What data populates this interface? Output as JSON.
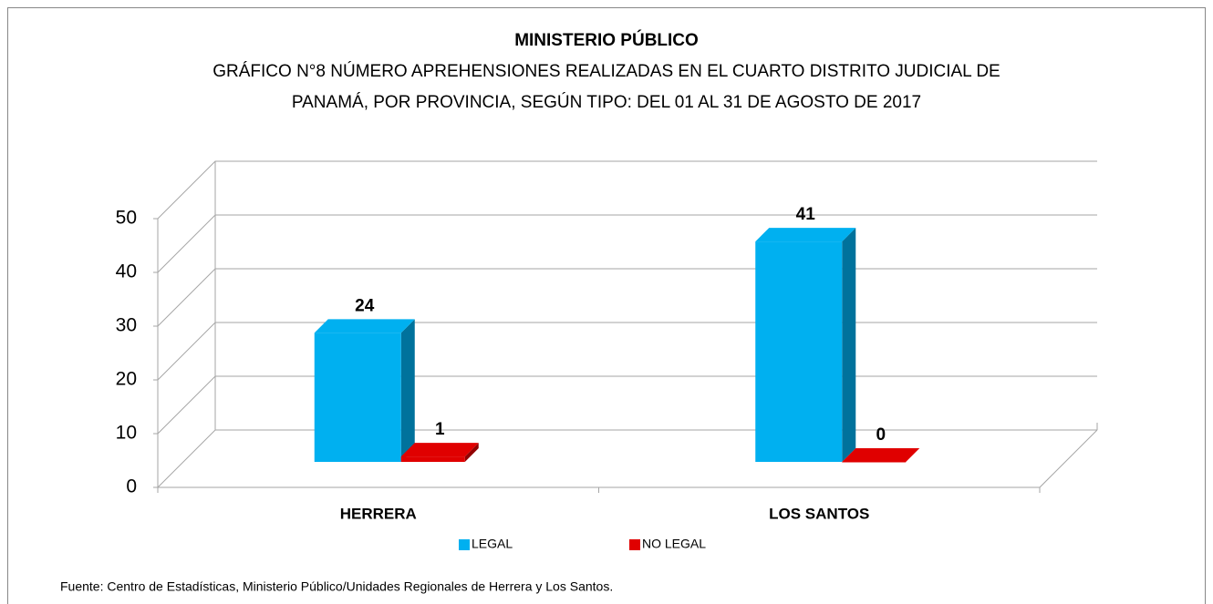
{
  "chart_data": {
    "type": "bar3d",
    "title": "MINISTERIO PÚBLICO",
    "subtitle": [
      "GRÁFICO N°8  NÚMERO APREHENSIONES REALIZADAS EN EL CUARTO DISTRITO JUDICIAL DE",
      "PANAMÁ, POR PROVINCIA, SEGÚN TIPO: DEL 01 AL 31 DE AGOSTO DE 2017"
    ],
    "categories": [
      "HERRERA",
      "LOS SANTOS"
    ],
    "series": [
      {
        "name": "LEGAL",
        "color": "#00b0f0",
        "values": [
          24,
          41
        ]
      },
      {
        "name": "NO LEGAL",
        "color": "#e00000",
        "values": [
          1,
          0
        ]
      }
    ],
    "ylim": [
      0,
      50
    ],
    "yticks": [
      0,
      10,
      20,
      30,
      40,
      50
    ],
    "grid": true,
    "legend": "bottom",
    "note": "Fuente: Centro de Estadísticas, Ministerio Público/Unidades Regionales de Herrera y Los Santos."
  }
}
